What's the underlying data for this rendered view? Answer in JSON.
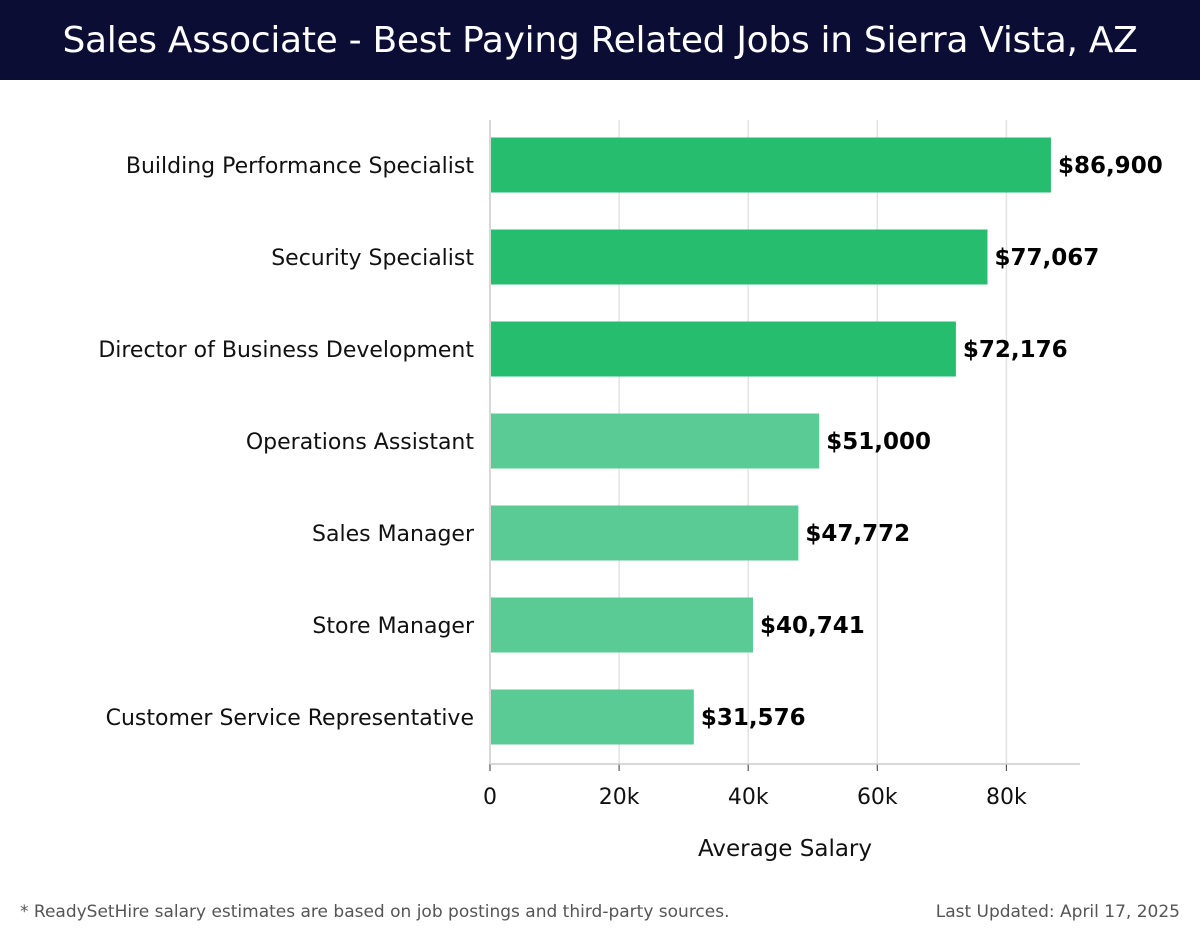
{
  "header": {
    "title": "Sales Associate - Best Paying Related Jobs in Sierra Vista, AZ"
  },
  "footer": {
    "note": "* ReadySetHire salary estimates are based on job postings and third-party sources.",
    "updated": "Last Updated: April 17, 2025"
  },
  "chart_data": {
    "type": "bar",
    "orientation": "horizontal",
    "categories": [
      "Building Performance Specialist",
      "Security Specialist",
      "Director of Business Development",
      "Operations Assistant",
      "Sales Manager",
      "Store Manager",
      "Customer Service Representative"
    ],
    "values": [
      86900,
      77067,
      72176,
      51000,
      47772,
      40741,
      31576
    ],
    "value_labels": [
      "$86,900",
      "$77,067",
      "$72,176",
      "$51,000",
      "$47,772",
      "$40,741",
      "$31,576"
    ],
    "xlabel": "Average Salary",
    "ylabel": "",
    "xlim": [
      0,
      91400
    ],
    "xticks": [
      0,
      20000,
      40000,
      60000,
      80000
    ],
    "xtick_labels": [
      "0",
      "20k",
      "40k",
      "60k",
      "80k"
    ],
    "grid": true,
    "colors": {
      "high": "#27bd6f",
      "low": "#52c890",
      "grid": "#e3e3e3",
      "axis": "#cccccc"
    }
  }
}
